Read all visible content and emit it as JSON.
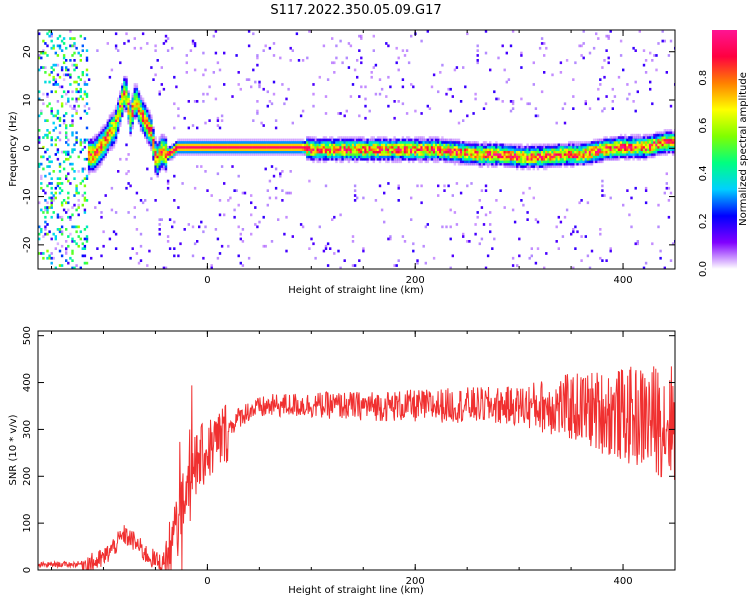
{
  "figure": {
    "title": "S117.2022.350.05.09.G17"
  },
  "chart_data": [
    {
      "type": "heatmap",
      "xlabel": "Height of straight line (km)",
      "ylabel": "Frequency (Hz)",
      "xlim": [
        -163,
        450
      ],
      "ylim": [
        -25,
        24.5
      ],
      "xticks": [
        0,
        200,
        400
      ],
      "yticks": [
        20,
        10,
        0,
        -10,
        -20
      ],
      "colorbar": {
        "label": "Normalized spectral amplitude",
        "range": [
          0,
          1
        ],
        "ticks": [
          "0.0",
          "0.2",
          "0.4",
          "0.6",
          "0.8"
        ],
        "colors": [
          "#ffffff",
          "#8000ff",
          "#0000ff",
          "#00d0ff",
          "#00ff80",
          "#80ff00",
          "#ffff00",
          "#ff8000",
          "#ff0040",
          "#ff1493"
        ]
      },
      "ridge_frequency": {
        "x": [
          -163,
          -150,
          -140,
          -130,
          -120,
          -110,
          -100,
          -95,
          -90,
          -85,
          -80,
          -75,
          -70,
          -65,
          -60,
          -55,
          -50,
          -45,
          -40,
          -35,
          -30,
          -20,
          -10,
          0,
          50,
          90,
          100,
          120,
          150,
          180,
          200,
          220,
          240,
          260,
          280,
          300,
          320,
          340,
          360,
          380,
          400,
          420,
          440,
          450
        ],
        "y": [
          -2,
          -2,
          -2.5,
          -1.5,
          -2,
          -1.5,
          1,
          3,
          4,
          8,
          12,
          6,
          10,
          7,
          5,
          3,
          -3,
          -1,
          -1.5,
          -1,
          0,
          0,
          0,
          0,
          0,
          0,
          -0.5,
          -0.5,
          -0.5,
          -0.5,
          -0.5,
          -0.5,
          -1,
          -1.5,
          -1.5,
          -2,
          -2,
          -1.5,
          -1.5,
          -0.5,
          0,
          0,
          1,
          1
        ]
      }
    },
    {
      "type": "line",
      "xlabel": "Height of straight line (km)",
      "ylabel": "SNR (10 * v/v)",
      "xlim": [
        -163,
        450
      ],
      "ylim": [
        0,
        510
      ],
      "xticks": [
        0,
        200,
        400
      ],
      "yticks": [
        0,
        100,
        200,
        300,
        400,
        500
      ],
      "color": "#f03030",
      "series": [
        {
          "x": [
            -163,
            -150,
            -130,
            -110,
            -100,
            -90,
            -80,
            -70,
            -60,
            -50,
            -45,
            -40,
            -35,
            -30,
            -25,
            -20,
            -15,
            -10,
            0,
            10,
            20,
            30,
            40,
            60,
            80,
            100,
            150,
            200,
            250,
            300,
            330,
            360,
            380,
            400,
            420,
            440,
            450
          ],
          "y": [
            10,
            12,
            12,
            15,
            25,
            50,
            75,
            60,
            35,
            20,
            15,
            20,
            40,
            90,
            120,
            190,
            210,
            230,
            255,
            275,
            300,
            325,
            340,
            350,
            352,
            352,
            350,
            350,
            352,
            350,
            350,
            345,
            338,
            330,
            325,
            318,
            315
          ]
        }
      ]
    }
  ]
}
